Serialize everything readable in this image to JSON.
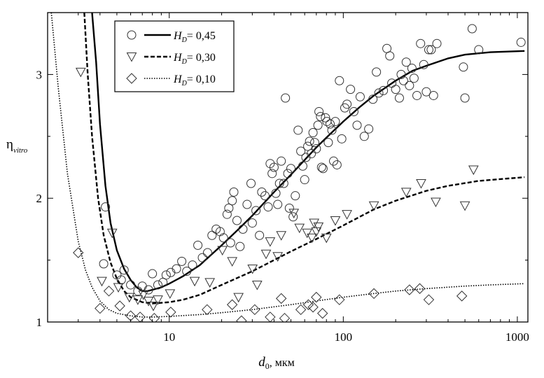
{
  "chart_data": {
    "type": "scatter",
    "xscale": "log",
    "xlim": [
      2,
      1150
    ],
    "ylim": [
      1,
      3.5
    ],
    "x_ticks": [
      10,
      100,
      1000
    ],
    "y_ticks": [
      1,
      2,
      3
    ],
    "xlabel": {
      "main": "d",
      "sub": "0",
      "rest": ", мкм"
    },
    "ylabel": {
      "main": "η",
      "sub": "vitro"
    },
    "legend": {
      "position": "top-left"
    },
    "series": [
      {
        "name": "H_D = 0,45",
        "label": {
          "main": "H",
          "sub": "D",
          "rest": "= 0,45"
        },
        "marker": "circle",
        "line_style": "solid",
        "points": [
          [
            4.2,
            1.47
          ],
          [
            4.3,
            1.93
          ],
          [
            5.0,
            1.38
          ],
          [
            5.5,
            1.42
          ],
          [
            5.3,
            1.34
          ],
          [
            6.0,
            1.3
          ],
          [
            6.6,
            1.25
          ],
          [
            7.0,
            1.29
          ],
          [
            7.6,
            1.26
          ],
          [
            8.0,
            1.39
          ],
          [
            8.6,
            1.3
          ],
          [
            9.2,
            1.32
          ],
          [
            9.6,
            1.38
          ],
          [
            10.2,
            1.4
          ],
          [
            11.0,
            1.43
          ],
          [
            11.8,
            1.49
          ],
          [
            12.6,
            1.41
          ],
          [
            13.6,
            1.46
          ],
          [
            14.6,
            1.62
          ],
          [
            15.5,
            1.52
          ],
          [
            16.6,
            1.56
          ],
          [
            17.6,
            1.7
          ],
          [
            18.6,
            1.75
          ],
          [
            19.6,
            1.73
          ],
          [
            20.5,
            1.68
          ],
          [
            21.5,
            1.87
          ],
          [
            22.0,
            1.92
          ],
          [
            22.5,
            1.64
          ],
          [
            23.0,
            1.98
          ],
          [
            23.5,
            2.05
          ],
          [
            24.5,
            1.82
          ],
          [
            25.5,
            1.61
          ],
          [
            26.5,
            1.75
          ],
          [
            28.0,
            1.95
          ],
          [
            29.5,
            2.12
          ],
          [
            30.0,
            1.8
          ],
          [
            31.5,
            1.9
          ],
          [
            33.0,
            1.7
          ],
          [
            34.0,
            2.05
          ],
          [
            35.5,
            2.02
          ],
          [
            37.0,
            1.93
          ],
          [
            38.0,
            2.28
          ],
          [
            39.0,
            2.2
          ],
          [
            40.0,
            2.25
          ],
          [
            41.0,
            2.04
          ],
          [
            42.0,
            1.95
          ],
          [
            43.0,
            2.12
          ],
          [
            44.0,
            2.3
          ],
          [
            45.5,
            2.12
          ],
          [
            46.5,
            2.81
          ],
          [
            48.0,
            2.2
          ],
          [
            49.0,
            1.92
          ],
          [
            50.0,
            2.24
          ],
          [
            51.5,
            1.85
          ],
          [
            53.0,
            2.02
          ],
          [
            55.0,
            2.55
          ],
          [
            57.0,
            2.38
          ],
          [
            58.5,
            2.26
          ],
          [
            60.0,
            2.15
          ],
          [
            61.0,
            2.33
          ],
          [
            62.5,
            2.42
          ],
          [
            64.0,
            2.46
          ],
          [
            65.5,
            2.36
          ],
          [
            67.0,
            2.53
          ],
          [
            68.5,
            2.45
          ],
          [
            70.0,
            2.4
          ],
          [
            71.5,
            2.59
          ],
          [
            72.5,
            2.7
          ],
          [
            74.0,
            2.66
          ],
          [
            75.0,
            2.25
          ],
          [
            76.5,
            2.24
          ],
          [
            79.0,
            2.65
          ],
          [
            80.5,
            2.62
          ],
          [
            82.0,
            2.45
          ],
          [
            84.0,
            2.6
          ],
          [
            86.0,
            2.55
          ],
          [
            88.0,
            2.3
          ],
          [
            90.0,
            2.62
          ],
          [
            92.0,
            2.27
          ],
          [
            95.0,
            2.95
          ],
          [
            98.0,
            2.48
          ],
          [
            102.0,
            2.73
          ],
          [
            105.0,
            2.76
          ],
          [
            110.0,
            2.88
          ],
          [
            115.0,
            2.7
          ],
          [
            120.0,
            2.59
          ],
          [
            125.0,
            2.82
          ],
          [
            132.0,
            2.5
          ],
          [
            140.0,
            2.56
          ],
          [
            148.0,
            2.8
          ],
          [
            155.0,
            3.02
          ],
          [
            160.0,
            2.85
          ],
          [
            170.0,
            2.87
          ],
          [
            178.0,
            3.21
          ],
          [
            185.0,
            3.15
          ],
          [
            190.0,
            2.93
          ],
          [
            200.0,
            2.88
          ],
          [
            210.0,
            2.81
          ],
          [
            215.0,
            3.0
          ],
          [
            222.0,
            2.95
          ],
          [
            230.0,
            3.1
          ],
          [
            240.0,
            2.91
          ],
          [
            248.0,
            3.05
          ],
          [
            255.0,
            2.97
          ],
          [
            265.0,
            2.83
          ],
          [
            278.0,
            3.25
          ],
          [
            290.0,
            3.08
          ],
          [
            300.0,
            2.86
          ],
          [
            310.0,
            3.2
          ],
          [
            320.0,
            3.2
          ],
          [
            330.0,
            2.83
          ],
          [
            345.0,
            3.25
          ],
          [
            490.0,
            3.06
          ],
          [
            500.0,
            2.81
          ],
          [
            550.0,
            3.37
          ],
          [
            600.0,
            3.2
          ],
          [
            1050.0,
            3.26
          ]
        ],
        "curve": [
          [
            3.6,
            3.5
          ],
          [
            3.8,
            3.1
          ],
          [
            4.0,
            2.6
          ],
          [
            4.3,
            2.1
          ],
          [
            4.6,
            1.8
          ],
          [
            5.0,
            1.58
          ],
          [
            5.5,
            1.43
          ],
          [
            6.0,
            1.34
          ],
          [
            6.5,
            1.28
          ],
          [
            7.0,
            1.25
          ],
          [
            7.5,
            1.25
          ],
          [
            8.0,
            1.26
          ],
          [
            9.0,
            1.28
          ],
          [
            10.0,
            1.31
          ],
          [
            12.0,
            1.37
          ],
          [
            15.0,
            1.46
          ],
          [
            20.0,
            1.62
          ],
          [
            25.0,
            1.75
          ],
          [
            30.0,
            1.86
          ],
          [
            40.0,
            2.05
          ],
          [
            50.0,
            2.19
          ],
          [
            60.0,
            2.31
          ],
          [
            70.0,
            2.41
          ],
          [
            80.0,
            2.49
          ],
          [
            100.0,
            2.62
          ],
          [
            125.0,
            2.74
          ],
          [
            150.0,
            2.83
          ],
          [
            200.0,
            2.95
          ],
          [
            250.0,
            3.03
          ],
          [
            300.0,
            3.07
          ],
          [
            400.0,
            3.13
          ],
          [
            500.0,
            3.16
          ],
          [
            700.0,
            3.18
          ],
          [
            1100.0,
            3.19
          ]
        ]
      },
      {
        "name": "H_D = 0,30",
        "label": {
          "main": "H",
          "sub": "D",
          "rest": "= 0,30"
        },
        "marker": "triangle-down",
        "line_style": "dashed",
        "points": [
          [
            3.1,
            3.02
          ],
          [
            4.1,
            1.33
          ],
          [
            4.7,
            1.72
          ],
          [
            5.1,
            1.28
          ],
          [
            5.9,
            1.2
          ],
          [
            6.6,
            1.18
          ],
          [
            7.1,
            1.22
          ],
          [
            7.6,
            1.17
          ],
          [
            8.1,
            1.13
          ],
          [
            8.6,
            1.18
          ],
          [
            10.1,
            1.23
          ],
          [
            14.0,
            1.33
          ],
          [
            17.1,
            1.32
          ],
          [
            20.2,
            1.58
          ],
          [
            23.0,
            1.49
          ],
          [
            25.0,
            1.2
          ],
          [
            30.1,
            1.43
          ],
          [
            32.0,
            1.3
          ],
          [
            36.0,
            1.55
          ],
          [
            38.0,
            1.65
          ],
          [
            42.0,
            1.53
          ],
          [
            44.0,
            1.7
          ],
          [
            52.0,
            1.88
          ],
          [
            56.0,
            1.76
          ],
          [
            62.0,
            1.72
          ],
          [
            66.0,
            1.68
          ],
          [
            68.0,
            1.8
          ],
          [
            70.0,
            1.73
          ],
          [
            72.0,
            1.77
          ],
          [
            80.0,
            1.68
          ],
          [
            90.0,
            1.82
          ],
          [
            105.0,
            1.87
          ],
          [
            150.0,
            1.94
          ],
          [
            230.0,
            2.05
          ],
          [
            280.0,
            2.12
          ],
          [
            340.0,
            1.97
          ],
          [
            500.0,
            1.94
          ],
          [
            560.0,
            2.23
          ]
        ],
        "curve": [
          [
            3.25,
            3.5
          ],
          [
            3.4,
            3.0
          ],
          [
            3.6,
            2.5
          ],
          [
            3.9,
            2.0
          ],
          [
            4.2,
            1.7
          ],
          [
            4.6,
            1.48
          ],
          [
            5.0,
            1.35
          ],
          [
            5.5,
            1.25
          ],
          [
            6.0,
            1.2
          ],
          [
            7.0,
            1.16
          ],
          [
            8.0,
            1.15
          ],
          [
            9.0,
            1.155
          ],
          [
            10.0,
            1.16
          ],
          [
            12.0,
            1.18
          ],
          [
            15.0,
            1.22
          ],
          [
            20.0,
            1.3
          ],
          [
            30.0,
            1.41
          ],
          [
            40.0,
            1.5
          ],
          [
            50.0,
            1.57
          ],
          [
            70.0,
            1.67
          ],
          [
            100.0,
            1.78
          ],
          [
            150.0,
            1.91
          ],
          [
            200.0,
            1.98
          ],
          [
            300.0,
            2.06
          ],
          [
            400.0,
            2.1
          ],
          [
            600.0,
            2.14
          ],
          [
            1100.0,
            2.17
          ]
        ]
      },
      {
        "name": "H_D = 0,10",
        "label": {
          "main": "H",
          "sub": "D",
          "rest": "= 0,10"
        },
        "marker": "diamond",
        "line_style": "dotted",
        "points": [
          [
            3.0,
            1.56
          ],
          [
            4.0,
            1.11
          ],
          [
            4.5,
            1.25
          ],
          [
            5.2,
            1.13
          ],
          [
            6.0,
            1.05
          ],
          [
            6.8,
            1.04
          ],
          [
            8.2,
            1.03
          ],
          [
            10.2,
            1.08
          ],
          [
            16.5,
            1.1
          ],
          [
            23.0,
            1.14
          ],
          [
            26.0,
            1.01
          ],
          [
            31.0,
            1.1
          ],
          [
            38.0,
            1.04
          ],
          [
            44.0,
            1.19
          ],
          [
            46.0,
            1.03
          ],
          [
            57.0,
            1.1
          ],
          [
            63.0,
            1.14
          ],
          [
            67.0,
            1.12
          ],
          [
            70.0,
            1.2
          ],
          [
            76.0,
            1.07
          ],
          [
            95.0,
            1.18
          ],
          [
            150.0,
            1.23
          ],
          [
            240.0,
            1.26
          ],
          [
            275.0,
            1.27
          ],
          [
            310.0,
            1.18
          ],
          [
            480.0,
            1.21
          ]
        ],
        "curve": [
          [
            2.1,
            3.5
          ],
          [
            2.3,
            2.9
          ],
          [
            2.6,
            2.2
          ],
          [
            3.0,
            1.65
          ],
          [
            3.3,
            1.42
          ],
          [
            3.6,
            1.28
          ],
          [
            4.0,
            1.17
          ],
          [
            4.5,
            1.1
          ],
          [
            5.0,
            1.07
          ],
          [
            6.0,
            1.05
          ],
          [
            7.0,
            1.04
          ],
          [
            8.0,
            1.04
          ],
          [
            10.0,
            1.045
          ],
          [
            15.0,
            1.06
          ],
          [
            20.0,
            1.075
          ],
          [
            30.0,
            1.1
          ],
          [
            50.0,
            1.14
          ],
          [
            70.0,
            1.17
          ],
          [
            100.0,
            1.2
          ],
          [
            150.0,
            1.23
          ],
          [
            200.0,
            1.25
          ],
          [
            300.0,
            1.27
          ],
          [
            500.0,
            1.29
          ],
          [
            700.0,
            1.3
          ],
          [
            1100.0,
            1.31
          ]
        ]
      }
    ]
  }
}
